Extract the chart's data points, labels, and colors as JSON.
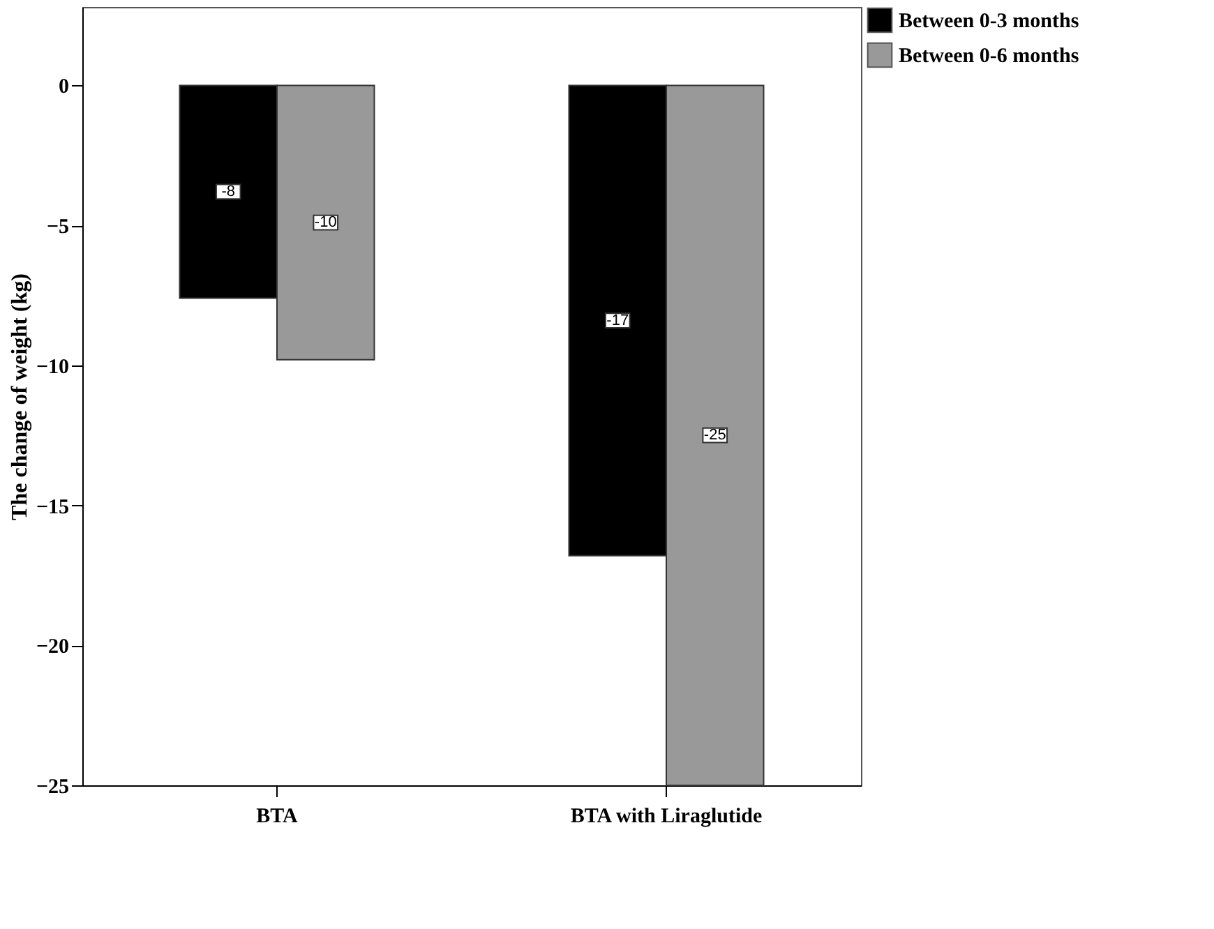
{
  "chart_data": {
    "type": "bar",
    "ylabel": "The change of weight (kg)",
    "categories": [
      "BTA",
      "BTA with Liraglutide"
    ],
    "series": [
      {
        "name": "Between 0-3 months",
        "color": "#000000",
        "values": [
          -7.6,
          -16.8
        ],
        "value_labels": [
          "-8",
          "-17"
        ]
      },
      {
        "name": "Between 0-6 months",
        "color": "#999999",
        "values": [
          -9.8,
          -25
        ],
        "value_labels": [
          "-10",
          "-25"
        ]
      }
    ],
    "ylim": [
      -25,
      2.8
    ],
    "yticks": [
      0,
      -5,
      -10,
      -15,
      -20,
      -25
    ],
    "grid": false,
    "legend": "top right"
  }
}
